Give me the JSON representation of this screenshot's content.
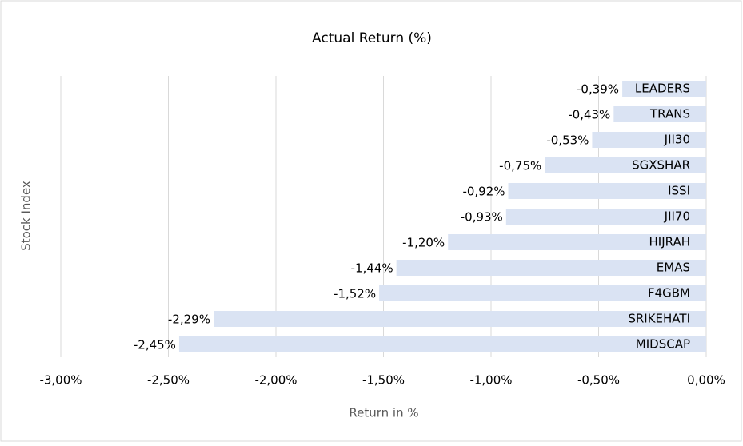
{
  "chart_data": {
    "type": "bar",
    "orientation": "horizontal",
    "title": "Actual Return (%)",
    "x_label": "Return in %",
    "y_label": "Stock Index",
    "categories": [
      "LEADERS",
      "TRANS",
      "JII30",
      "SGXSHAR",
      "ISSI",
      "JII70",
      "HIJRAH",
      "EMAS",
      "F4GBM",
      "SRIKEHATI",
      "MIDSCAP"
    ],
    "values": [
      -0.39,
      -0.43,
      -0.53,
      -0.75,
      -0.92,
      -0.93,
      -1.2,
      -1.44,
      -1.52,
      -2.29,
      -2.45
    ],
    "value_labels": [
      "-0,39%",
      "-0,43%",
      "-0,53%",
      "-0,75%",
      "-0,92%",
      "-0,93%",
      "-1,20%",
      "-1,44%",
      "-1,52%",
      "-2,29%",
      "-2,45%"
    ],
    "color": "#dae3f3",
    "xlim": [
      -3,
      0
    ],
    "xticks": [
      {
        "value": -3,
        "label": "-3,00%"
      },
      {
        "value": -2.5,
        "label": "-2,50%"
      },
      {
        "value": -2,
        "label": "-2,00%"
      },
      {
        "value": -1.5,
        "label": "-1,50%"
      },
      {
        "value": -1,
        "label": "-1,00%"
      },
      {
        "value": -0.5,
        "label": "-0,50%"
      },
      {
        "value": 0,
        "label": "0,00%"
      }
    ],
    "grid": true
  }
}
